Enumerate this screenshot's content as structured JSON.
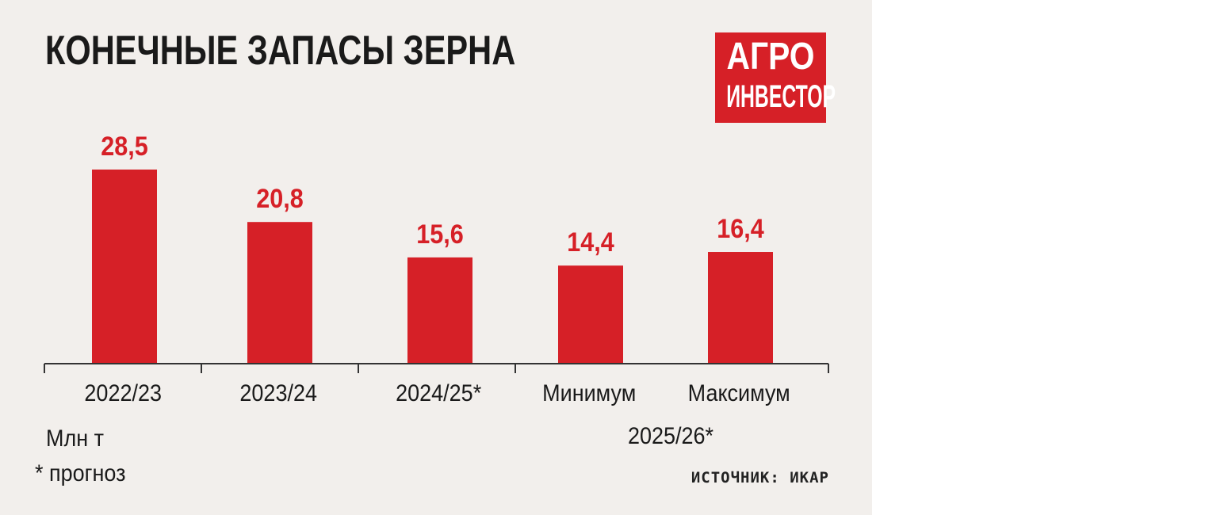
{
  "header": {
    "title": "КОНЕЧНЫЕ ЗАПАСЫ ЗЕРНА",
    "logo_line1": "АГРО",
    "logo_line2": "ИНВЕСТОР"
  },
  "notes": {
    "unit": "Млн т",
    "footnote": "* прогноз",
    "source": "ИСТОЧНИК: ИКАР"
  },
  "colors": {
    "bar": "#d62027",
    "value_label": "#d62027",
    "background": "#f2efec",
    "axis": "#333333"
  },
  "chart_data": {
    "type": "bar",
    "title": "КОНЕЧНЫЕ ЗАПАСЫ ЗЕРНА",
    "categories": [
      "2022/23",
      "2023/24",
      "2024/25*",
      "Минимум",
      "Максимум"
    ],
    "values": [
      28.5,
      20.8,
      15.6,
      14.4,
      16.4
    ],
    "value_labels": [
      "28,5",
      "20,8",
      "15,6",
      "14,4",
      "16,4"
    ],
    "group_label": "2025/26*",
    "group_categories": [
      "Минимум",
      "Максимум"
    ],
    "ylabel": "Млн т",
    "xlabel": "",
    "ylim": [
      0,
      28.5
    ],
    "grid": false,
    "legend": "none"
  }
}
